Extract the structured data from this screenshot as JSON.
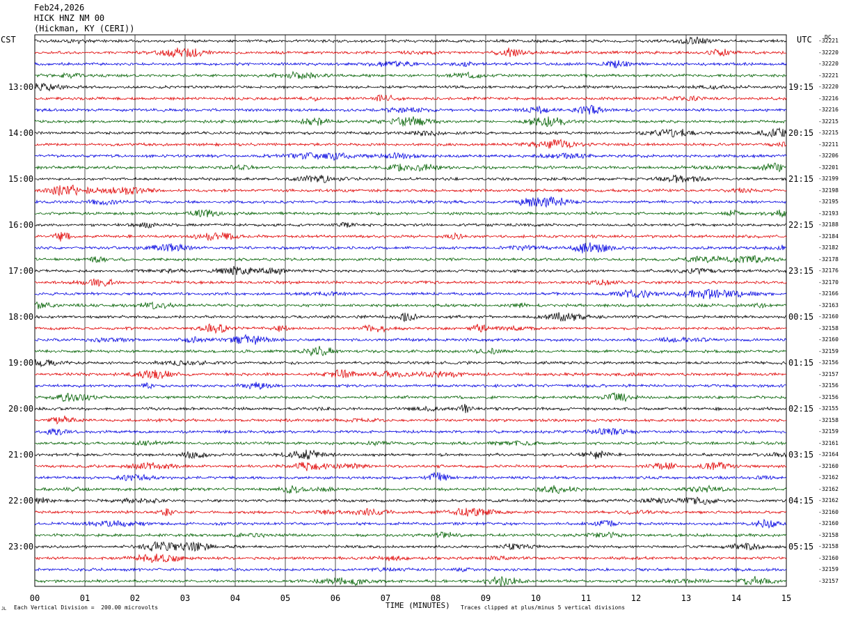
{
  "header": {
    "date": "Feb24,2026",
    "station": "HICK HNZ NM 00",
    "location": "(Hickman, KY (CERI))"
  },
  "left_tz": "CST",
  "right_tz": "UTC",
  "dc_label": "DC",
  "footer": {
    "division": "Each Vertical Division =  200.00 microvolts",
    "xlabel": "TIME (MINUTES)",
    "clip_note": "Traces clipped at plus/minus 5 vertical divisions",
    "logo_mark": "JL"
  },
  "chart_data": {
    "type": "line",
    "title": "HICK HNZ NM 00",
    "xlabel": "TIME (MINUTES)",
    "xlim": [
      0,
      15
    ],
    "x_ticks": [
      "00",
      "01",
      "02",
      "03",
      "04",
      "05",
      "06",
      "07",
      "08",
      "09",
      "10",
      "11",
      "12",
      "13",
      "14",
      "15"
    ],
    "left_hour_labels": [
      "13:00",
      "14:00",
      "15:00",
      "16:00",
      "17:00",
      "18:00",
      "19:00",
      "20:00",
      "21:00",
      "22:00",
      "23:00"
    ],
    "right_hour_labels": [
      "19:15",
      "20:15",
      "21:15",
      "22:15",
      "23:15",
      "00:15",
      "01:15",
      "02:15",
      "03:15",
      "04:15",
      "05:15"
    ],
    "trace_colors": [
      "#000000",
      "#e00000",
      "#0000e0",
      "#006000"
    ],
    "dc_offsets": [
      -32221,
      -32220,
      -32220,
      -32221,
      -32220,
      -32216,
      -32216,
      -32215,
      -32215,
      -32211,
      -32206,
      -32201,
      -32199,
      -32198,
      -32195,
      -32193,
      -32188,
      -32184,
      -32182,
      -32178,
      -32176,
      -32170,
      -32166,
      -32163,
      -32160,
      -32158,
      -32160,
      -32159,
      -32156,
      -32157,
      -32156,
      -32156,
      -32155,
      -32158,
      -32159,
      -32161,
      -32164,
      -32160,
      -32162,
      -32162,
      -32162,
      -32160,
      -32160,
      -32158,
      -32158,
      -32160,
      -32159,
      -32157
    ]
  }
}
